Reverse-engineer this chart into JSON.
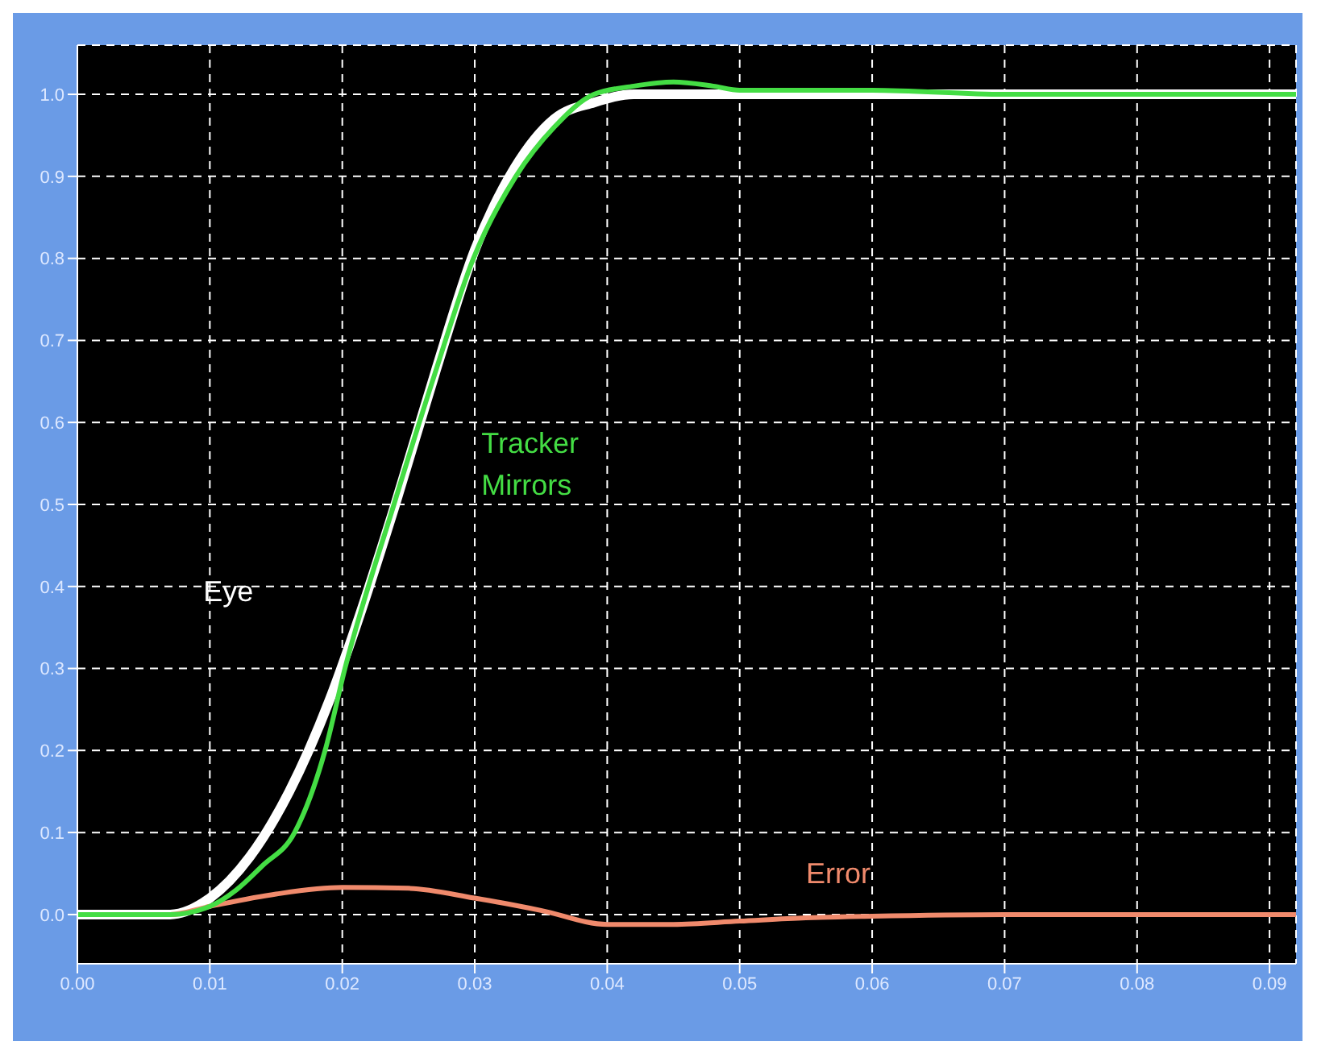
{
  "chart_data": {
    "type": "line",
    "xlim": [
      0,
      0.092
    ],
    "ylim": [
      -0.06,
      1.06
    ],
    "xticks": [
      {
        "value": 0,
        "label": "0.00"
      },
      0.01,
      0.02,
      0.03,
      0.04,
      0.05,
      0.06,
      0.07,
      0.08,
      0.09
    ],
    "yticks": [
      {
        "value": 0,
        "label": "0.0"
      },
      0.1,
      0.2,
      0.3,
      0.4,
      0.5,
      0.6,
      0.7,
      0.8,
      0.9,
      {
        "value": 1,
        "label": "1.0"
      }
    ],
    "grid": true,
    "line_style": "solid",
    "marker": "none",
    "series": [
      {
        "name": "Eye",
        "color": "#ffffff",
        "x": [
          0,
          0.007,
          0.01,
          0.013,
          0.016,
          0.019,
          0.021,
          0.024,
          0.027,
          0.03,
          0.033,
          0.036,
          0.039,
          0.042,
          0.045,
          0.05,
          0.06,
          0.07,
          0.08,
          0.092
        ],
        "values": [
          0,
          0,
          0.02,
          0.07,
          0.15,
          0.26,
          0.35,
          0.5,
          0.66,
          0.81,
          0.91,
          0.97,
          0.99,
          1.0,
          1.0,
          1.0,
          1.0,
          1.0,
          1.0,
          1.0
        ]
      },
      {
        "name": "Tracker Mirrors",
        "color": "#44dd44",
        "x": [
          0,
          0.007,
          0.01,
          0.012,
          0.014,
          0.0164,
          0.0187,
          0.0202,
          0.0239,
          0.027,
          0.0299,
          0.0331,
          0.036,
          0.039,
          0.042,
          0.045,
          0.048,
          0.05,
          0.06,
          0.07,
          0.08,
          0.092
        ],
        "values": [
          0,
          0,
          0.01,
          0.03,
          0.06,
          0.1,
          0.2,
          0.3,
          0.5,
          0.66,
          0.8,
          0.9,
          0.96,
          1.0,
          1.01,
          1.015,
          1.01,
          1.005,
          1.005,
          1.0,
          1.0,
          1.0
        ]
      },
      {
        "name": "Error",
        "color": "#f08a6c",
        "x": [
          0,
          0.007,
          0.01,
          0.015,
          0.02,
          0.025,
          0.03,
          0.035,
          0.04,
          0.045,
          0.05,
          0.055,
          0.06,
          0.07,
          0.08,
          0.092
        ],
        "values": [
          0,
          0,
          0.01,
          0.025,
          0.033,
          0.032,
          0.02,
          0.005,
          -0.012,
          -0.012,
          -0.008,
          -0.004,
          -0.002,
          0,
          0,
          0
        ]
      }
    ]
  }
}
